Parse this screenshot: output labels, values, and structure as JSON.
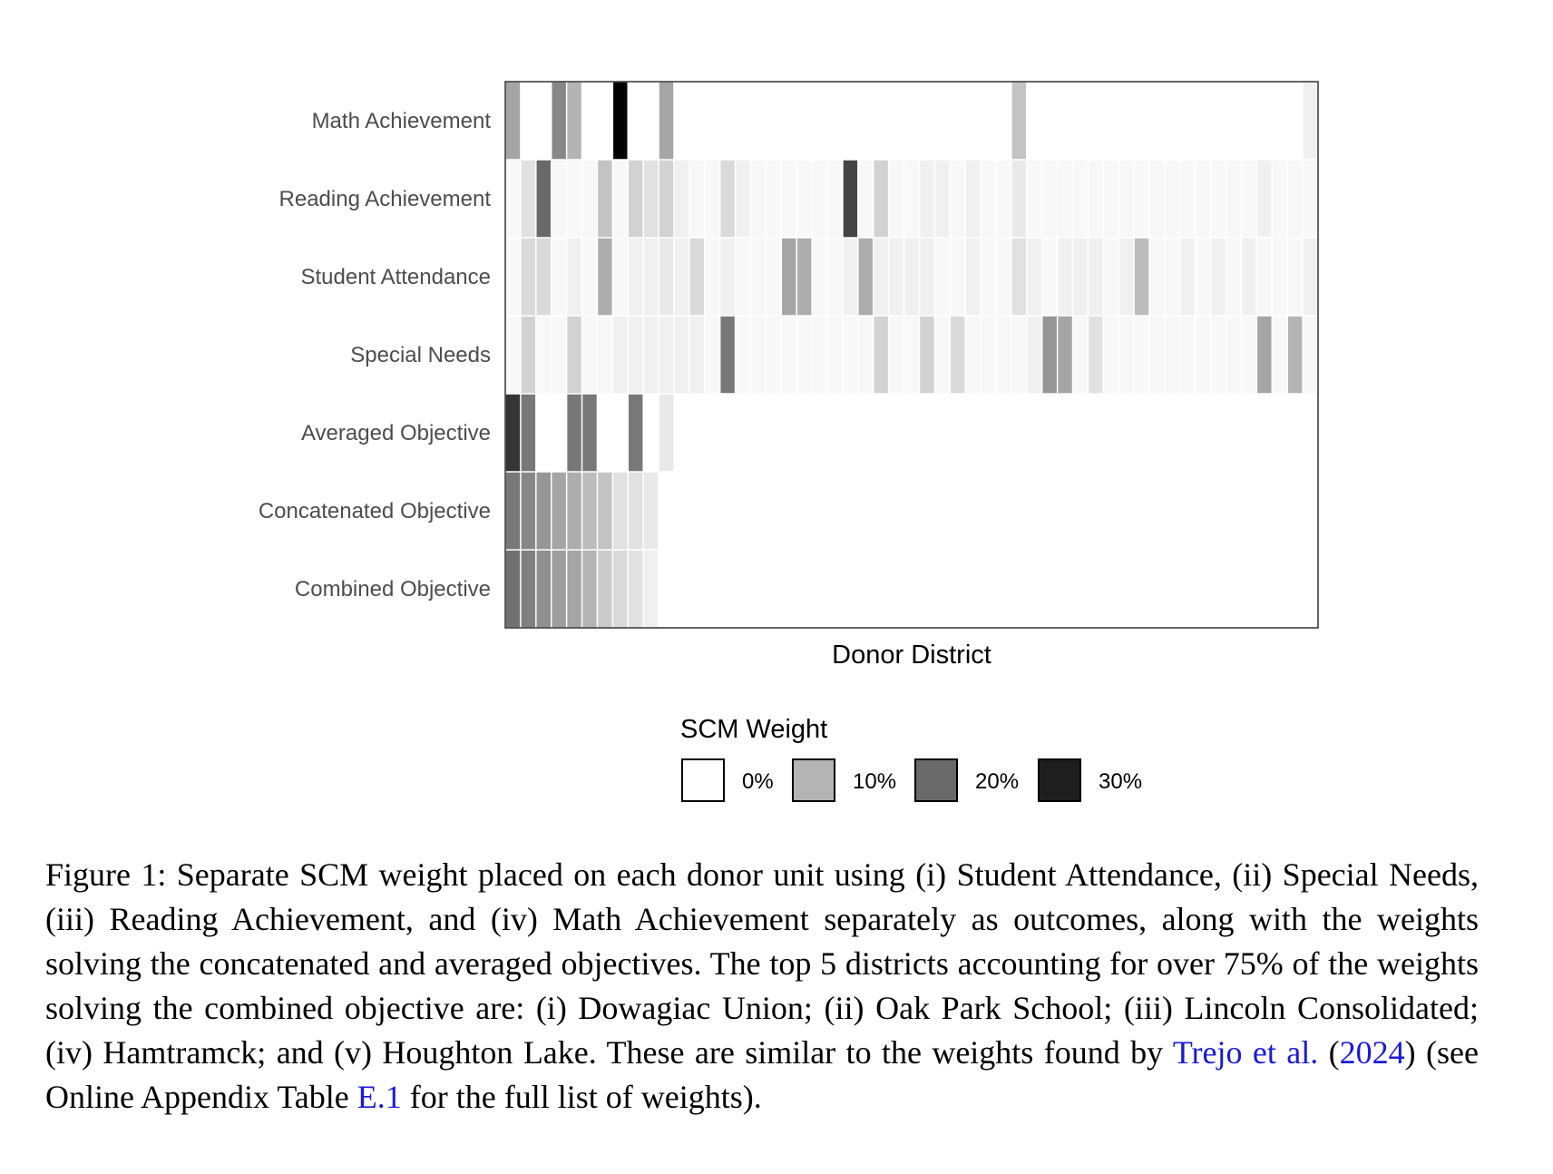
{
  "chart_data": {
    "type": "heatmap",
    "xlabel": "Donor District",
    "rows": [
      "Math Achievement",
      "Reading Achievement",
      "Student Attendance",
      "Special Needs",
      "Averaged Objective",
      "Concatenated Objective",
      "Combined Objective"
    ],
    "n_columns": 53,
    "legend": {
      "title": "SCM Weight",
      "breaks": [
        {
          "label": "0%",
          "value": 0.0
        },
        {
          "label": "10%",
          "value": 0.1
        },
        {
          "label": "20%",
          "value": 0.2
        },
        {
          "label": "30%",
          "value": 0.3
        }
      ]
    },
    "values": [
      [
        0.12,
        0,
        0,
        0.16,
        0.1,
        0,
        0,
        0.34,
        0,
        0,
        0.12,
        0,
        0,
        0,
        0,
        0,
        0,
        0,
        0,
        0,
        0,
        0,
        0,
        0,
        0,
        0,
        0,
        0,
        0,
        0,
        0,
        0,
        0,
        0.08,
        0,
        0,
        0,
        0,
        0,
        0,
        0,
        0,
        0,
        0,
        0,
        0,
        0,
        0,
        0,
        0,
        0,
        0,
        0.02
      ],
      [
        0.01,
        0.04,
        0.2,
        0.01,
        0.01,
        0.01,
        0.08,
        0.01,
        0.06,
        0.04,
        0.06,
        0.02,
        0.01,
        0.01,
        0.05,
        0.02,
        0.01,
        0.01,
        0.01,
        0.01,
        0.01,
        0.01,
        0.25,
        0.01,
        0.06,
        0.01,
        0.01,
        0.02,
        0.02,
        0.01,
        0.02,
        0.01,
        0.01,
        0.03,
        0.01,
        0.01,
        0.01,
        0.01,
        0.01,
        0.01,
        0.01,
        0.01,
        0.01,
        0.01,
        0.01,
        0.01,
        0.01,
        0.01,
        0.01,
        0.02,
        0.01,
        0.01,
        0.01
      ],
      [
        0.01,
        0.05,
        0.05,
        0.01,
        0.02,
        0.01,
        0.11,
        0.01,
        0.02,
        0.02,
        0.03,
        0.02,
        0.05,
        0.01,
        0.02,
        0.01,
        0.01,
        0.01,
        0.12,
        0.11,
        0.01,
        0.01,
        0.02,
        0.11,
        0.02,
        0.02,
        0.02,
        0.02,
        0.01,
        0.01,
        0.02,
        0.01,
        0.01,
        0.04,
        0.02,
        0.01,
        0.02,
        0.02,
        0.02,
        0.01,
        0.02,
        0.09,
        0.01,
        0.01,
        0.02,
        0.01,
        0.02,
        0.01,
        0.02,
        0.01,
        0.01,
        0.01,
        0.02
      ],
      [
        0.01,
        0.06,
        0.01,
        0.01,
        0.06,
        0.01,
        0.01,
        0.02,
        0.02,
        0.02,
        0.02,
        0.02,
        0.02,
        0.01,
        0.18,
        0.01,
        0.01,
        0.01,
        0.01,
        0.01,
        0.01,
        0.01,
        0.01,
        0.01,
        0.06,
        0.01,
        0.01,
        0.06,
        0.01,
        0.05,
        0.01,
        0.01,
        0.01,
        0.01,
        0.02,
        0.14,
        0.12,
        0.01,
        0.04,
        0.01,
        0.01,
        0.01,
        0.01,
        0.01,
        0.01,
        0.01,
        0.01,
        0.01,
        0.01,
        0.12,
        0.01,
        0.1,
        0.01
      ],
      [
        0.27,
        0.18,
        0,
        0,
        0.18,
        0.18,
        0,
        0,
        0.18,
        0,
        0.03,
        0,
        0,
        0,
        0,
        0,
        0,
        0,
        0,
        0,
        0,
        0,
        0,
        0,
        0,
        0,
        0,
        0,
        0,
        0,
        0,
        0,
        0,
        0,
        0,
        0,
        0,
        0,
        0,
        0,
        0,
        0,
        0,
        0,
        0,
        0,
        0,
        0,
        0,
        0,
        0,
        0,
        0
      ],
      [
        0.18,
        0.16,
        0.14,
        0.12,
        0.11,
        0.09,
        0.08,
        0.04,
        0.04,
        0.03,
        0,
        0,
        0,
        0,
        0,
        0,
        0,
        0,
        0,
        0,
        0,
        0,
        0,
        0,
        0,
        0,
        0,
        0,
        0,
        0,
        0,
        0,
        0,
        0,
        0,
        0,
        0,
        0,
        0,
        0,
        0,
        0,
        0,
        0,
        0,
        0,
        0,
        0,
        0,
        0,
        0,
        0,
        0
      ],
      [
        0.19,
        0.17,
        0.15,
        0.13,
        0.12,
        0.1,
        0.07,
        0.05,
        0.04,
        0.02,
        0,
        0,
        0,
        0,
        0,
        0,
        0,
        0,
        0,
        0,
        0,
        0,
        0,
        0,
        0,
        0,
        0,
        0,
        0,
        0,
        0,
        0,
        0,
        0,
        0,
        0,
        0,
        0,
        0,
        0,
        0,
        0,
        0,
        0,
        0,
        0,
        0,
        0,
        0,
        0,
        0,
        0,
        0
      ]
    ]
  },
  "caption": {
    "part1": "Figure 1: Separate SCM weight placed on each donor unit using (i) Student Attendance, (ii) Special Needs, (iii) Reading Achievement, and (iv) Math Achievement separately as outcomes, along with the weights solving the concatenated and averaged objectives. The top 5 districts accounting for over 75% of the weights solving the combined objective are: (i) Dowagiac Union; (ii) Oak Park School; (iii) Lincoln Consolidated; (iv) Hamtramck; and (v) Houghton Lake. These are similar to the weights found by ",
    "cite_authors": "Trejo et al.",
    "paren_open": " (",
    "cite_year": "2024",
    "part2": ") (see Online Appendix Table ",
    "table_ref": "E.1",
    "part3": " for the full list of weights)."
  }
}
